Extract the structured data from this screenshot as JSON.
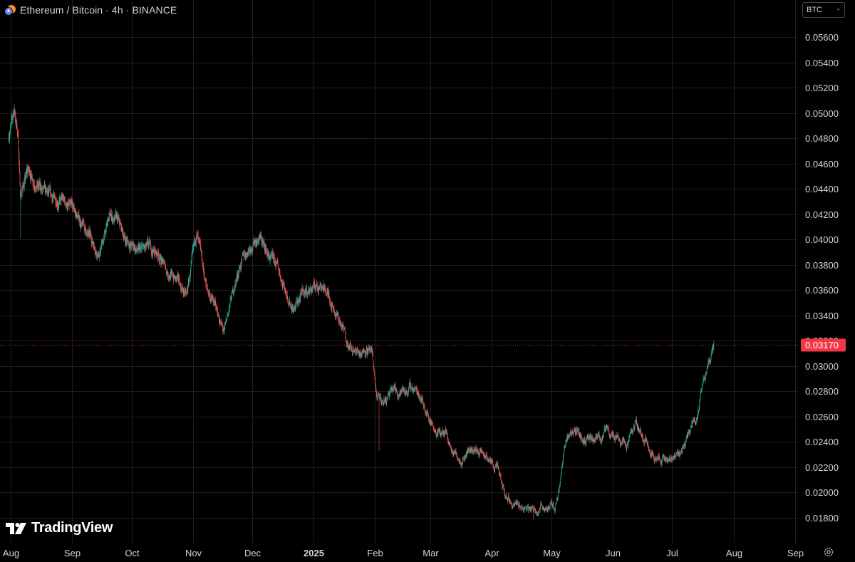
{
  "header": {
    "symbol_title": "Ethereum / Bitcoin · 4h · BINANCE",
    "currency_selector": "BTC"
  },
  "branding": {
    "logo_text": "TradingView"
  },
  "icons": {
    "symbol": "eth-btc-pair-icon",
    "settings": "gear-icon",
    "logo": "tradingview-logo-icon",
    "dropdown": "chevron-down-icon"
  },
  "colors": {
    "up": "#26a69a",
    "down": "#ef5350",
    "current_price": "#f23645",
    "grid": "#1f1f1f",
    "axis_text": "#d1d4dc"
  },
  "chart_data": {
    "type": "candlestick",
    "series": [
      {
        "name": "",
        "interval": "4h"
      }
    ],
    "ylim": [
      0.0172,
      0.0577
    ],
    "y_ticks": [
      0.018,
      0.02,
      0.022,
      0.024,
      0.026,
      0.028,
      0.03,
      0.032,
      0.034,
      0.036,
      0.038,
      0.04,
      0.042,
      0.044,
      0.046,
      0.048,
      0.05,
      0.052,
      0.054,
      0.056
    ],
    "y_tick_labels": [
      "0.01800",
      "0.02000",
      "0.02200",
      "0.02400",
      "0.02600",
      "0.02800",
      "0.03000",
      "0.03200",
      "0.03400",
      "0.03600",
      "0.03800",
      "0.04000",
      "0.04200",
      "0.04400",
      "0.04600",
      "0.04800",
      "0.05000",
      "0.05200",
      "0.05400",
      "0.05600"
    ],
    "xlim": [
      "2024-08-01",
      "2025-09-25"
    ],
    "x_ticks": [
      {
        "date": "2024-08-01",
        "label": "Aug",
        "bold": false
      },
      {
        "date": "2024-09-01",
        "label": "Sep",
        "bold": false
      },
      {
        "date": "2024-10-01",
        "label": "Oct",
        "bold": false
      },
      {
        "date": "2024-11-01",
        "label": "Nov",
        "bold": false
      },
      {
        "date": "2024-12-01",
        "label": "Dec",
        "bold": false
      },
      {
        "date": "2025-01-01",
        "label": "2025",
        "bold": true
      },
      {
        "date": "2025-02-01",
        "label": "Feb",
        "bold": false
      },
      {
        "date": "2025-03-01",
        "label": "Mar",
        "bold": false
      },
      {
        "date": "2025-04-01",
        "label": "Apr",
        "bold": false
      },
      {
        "date": "2025-05-01",
        "label": "May",
        "bold": false
      },
      {
        "date": "2025-06-01",
        "label": "Jun",
        "bold": false
      },
      {
        "date": "2025-07-01",
        "label": "Jul",
        "bold": false
      },
      {
        "date": "2025-08-01",
        "label": "Aug",
        "bold": false
      },
      {
        "date": "2025-09-01",
        "label": "Sep",
        "bold": false
      }
    ],
    "current_price": 0.0317,
    "current_price_label": "0.03170",
    "price_path": [
      [
        "2024-07-31",
        0.048
      ],
      [
        "2024-08-03",
        0.0503
      ],
      [
        "2024-08-05",
        0.048
      ],
      [
        "2024-08-06",
        0.0435
      ],
      [
        "2024-08-10",
        0.0455
      ],
      [
        "2024-08-14",
        0.0444
      ],
      [
        "2024-08-18",
        0.0437
      ],
      [
        "2024-08-22",
        0.0432
      ],
      [
        "2024-08-28",
        0.043
      ],
      [
        "2024-09-03",
        0.042
      ],
      [
        "2024-09-08",
        0.0407
      ],
      [
        "2024-09-12",
        0.0397
      ],
      [
        "2024-09-15",
        0.0388
      ],
      [
        "2024-09-20",
        0.0418
      ],
      [
        "2024-09-24",
        0.0415
      ],
      [
        "2024-09-28",
        0.04
      ],
      [
        "2024-10-05",
        0.039
      ],
      [
        "2024-10-10",
        0.0393
      ],
      [
        "2024-10-15",
        0.0388
      ],
      [
        "2024-10-19",
        0.0375
      ],
      [
        "2024-10-24",
        0.0368
      ],
      [
        "2024-10-29",
        0.0355
      ],
      [
        "2024-11-01",
        0.0385
      ],
      [
        "2024-11-03",
        0.0405
      ],
      [
        "2024-11-08",
        0.0362
      ],
      [
        "2024-11-13",
        0.0345
      ],
      [
        "2024-11-17",
        0.0325
      ],
      [
        "2024-11-20",
        0.035
      ],
      [
        "2024-11-25",
        0.038
      ],
      [
        "2024-11-30",
        0.0395
      ],
      [
        "2024-12-05",
        0.0402
      ],
      [
        "2024-12-10",
        0.0385
      ],
      [
        "2024-12-14",
        0.0378
      ],
      [
        "2024-12-18",
        0.036
      ],
      [
        "2024-12-22",
        0.0345
      ],
      [
        "2024-12-27",
        0.0358
      ],
      [
        "2025-01-01",
        0.0362
      ],
      [
        "2025-01-05",
        0.0365
      ],
      [
        "2025-01-09",
        0.0355
      ],
      [
        "2025-01-13",
        0.034
      ],
      [
        "2025-01-17",
        0.0325
      ],
      [
        "2025-01-21",
        0.031
      ],
      [
        "2025-01-25",
        0.0312
      ],
      [
        "2025-01-28",
        0.0315
      ],
      [
        "2025-01-31",
        0.0305
      ],
      [
        "2025-02-02",
        0.0275
      ],
      [
        "2025-02-05",
        0.027
      ],
      [
        "2025-02-10",
        0.028
      ],
      [
        "2025-02-15",
        0.028
      ],
      [
        "2025-02-20",
        0.0283
      ],
      [
        "2025-02-24",
        0.0278
      ],
      [
        "2025-02-28",
        0.026
      ],
      [
        "2025-03-05",
        0.0248
      ],
      [
        "2025-03-09",
        0.0245
      ],
      [
        "2025-03-12",
        0.0232
      ],
      [
        "2025-03-17",
        0.0228
      ],
      [
        "2025-03-21",
        0.0235
      ],
      [
        "2025-03-26",
        0.0232
      ],
      [
        "2025-03-31",
        0.0225
      ],
      [
        "2025-04-04",
        0.0218
      ],
      [
        "2025-04-07",
        0.02
      ],
      [
        "2025-04-12",
        0.019
      ],
      [
        "2025-04-17",
        0.0188
      ],
      [
        "2025-04-22",
        0.0187
      ],
      [
        "2025-04-27",
        0.019
      ],
      [
        "2025-05-01",
        0.0189
      ],
      [
        "2025-05-03",
        0.0188
      ],
      [
        "2025-05-06",
        0.0215
      ],
      [
        "2025-05-09",
        0.0245
      ],
      [
        "2025-05-13",
        0.025
      ],
      [
        "2025-05-18",
        0.0242
      ],
      [
        "2025-05-23",
        0.024
      ],
      [
        "2025-05-29",
        0.0248
      ],
      [
        "2025-06-03",
        0.0245
      ],
      [
        "2025-06-09",
        0.024
      ],
      [
        "2025-06-13",
        0.0255
      ],
      [
        "2025-06-17",
        0.0242
      ],
      [
        "2025-06-22",
        0.0232
      ],
      [
        "2025-06-26",
        0.0225
      ],
      [
        "2025-07-01",
        0.0228
      ],
      [
        "2025-07-05",
        0.0232
      ],
      [
        "2025-07-08",
        0.024
      ],
      [
        "2025-07-11",
        0.0255
      ],
      [
        "2025-07-14",
        0.0262
      ],
      [
        "2025-07-17",
        0.029
      ],
      [
        "2025-07-20",
        0.0305
      ],
      [
        "2025-07-22",
        0.0317
      ]
    ],
    "wick_extremes": [
      {
        "date": "2024-08-06",
        "low": 0.0401
      },
      {
        "date": "2025-02-03",
        "low": 0.0233
      },
      {
        "date": "2025-04-22",
        "low": 0.0178
      }
    ]
  }
}
